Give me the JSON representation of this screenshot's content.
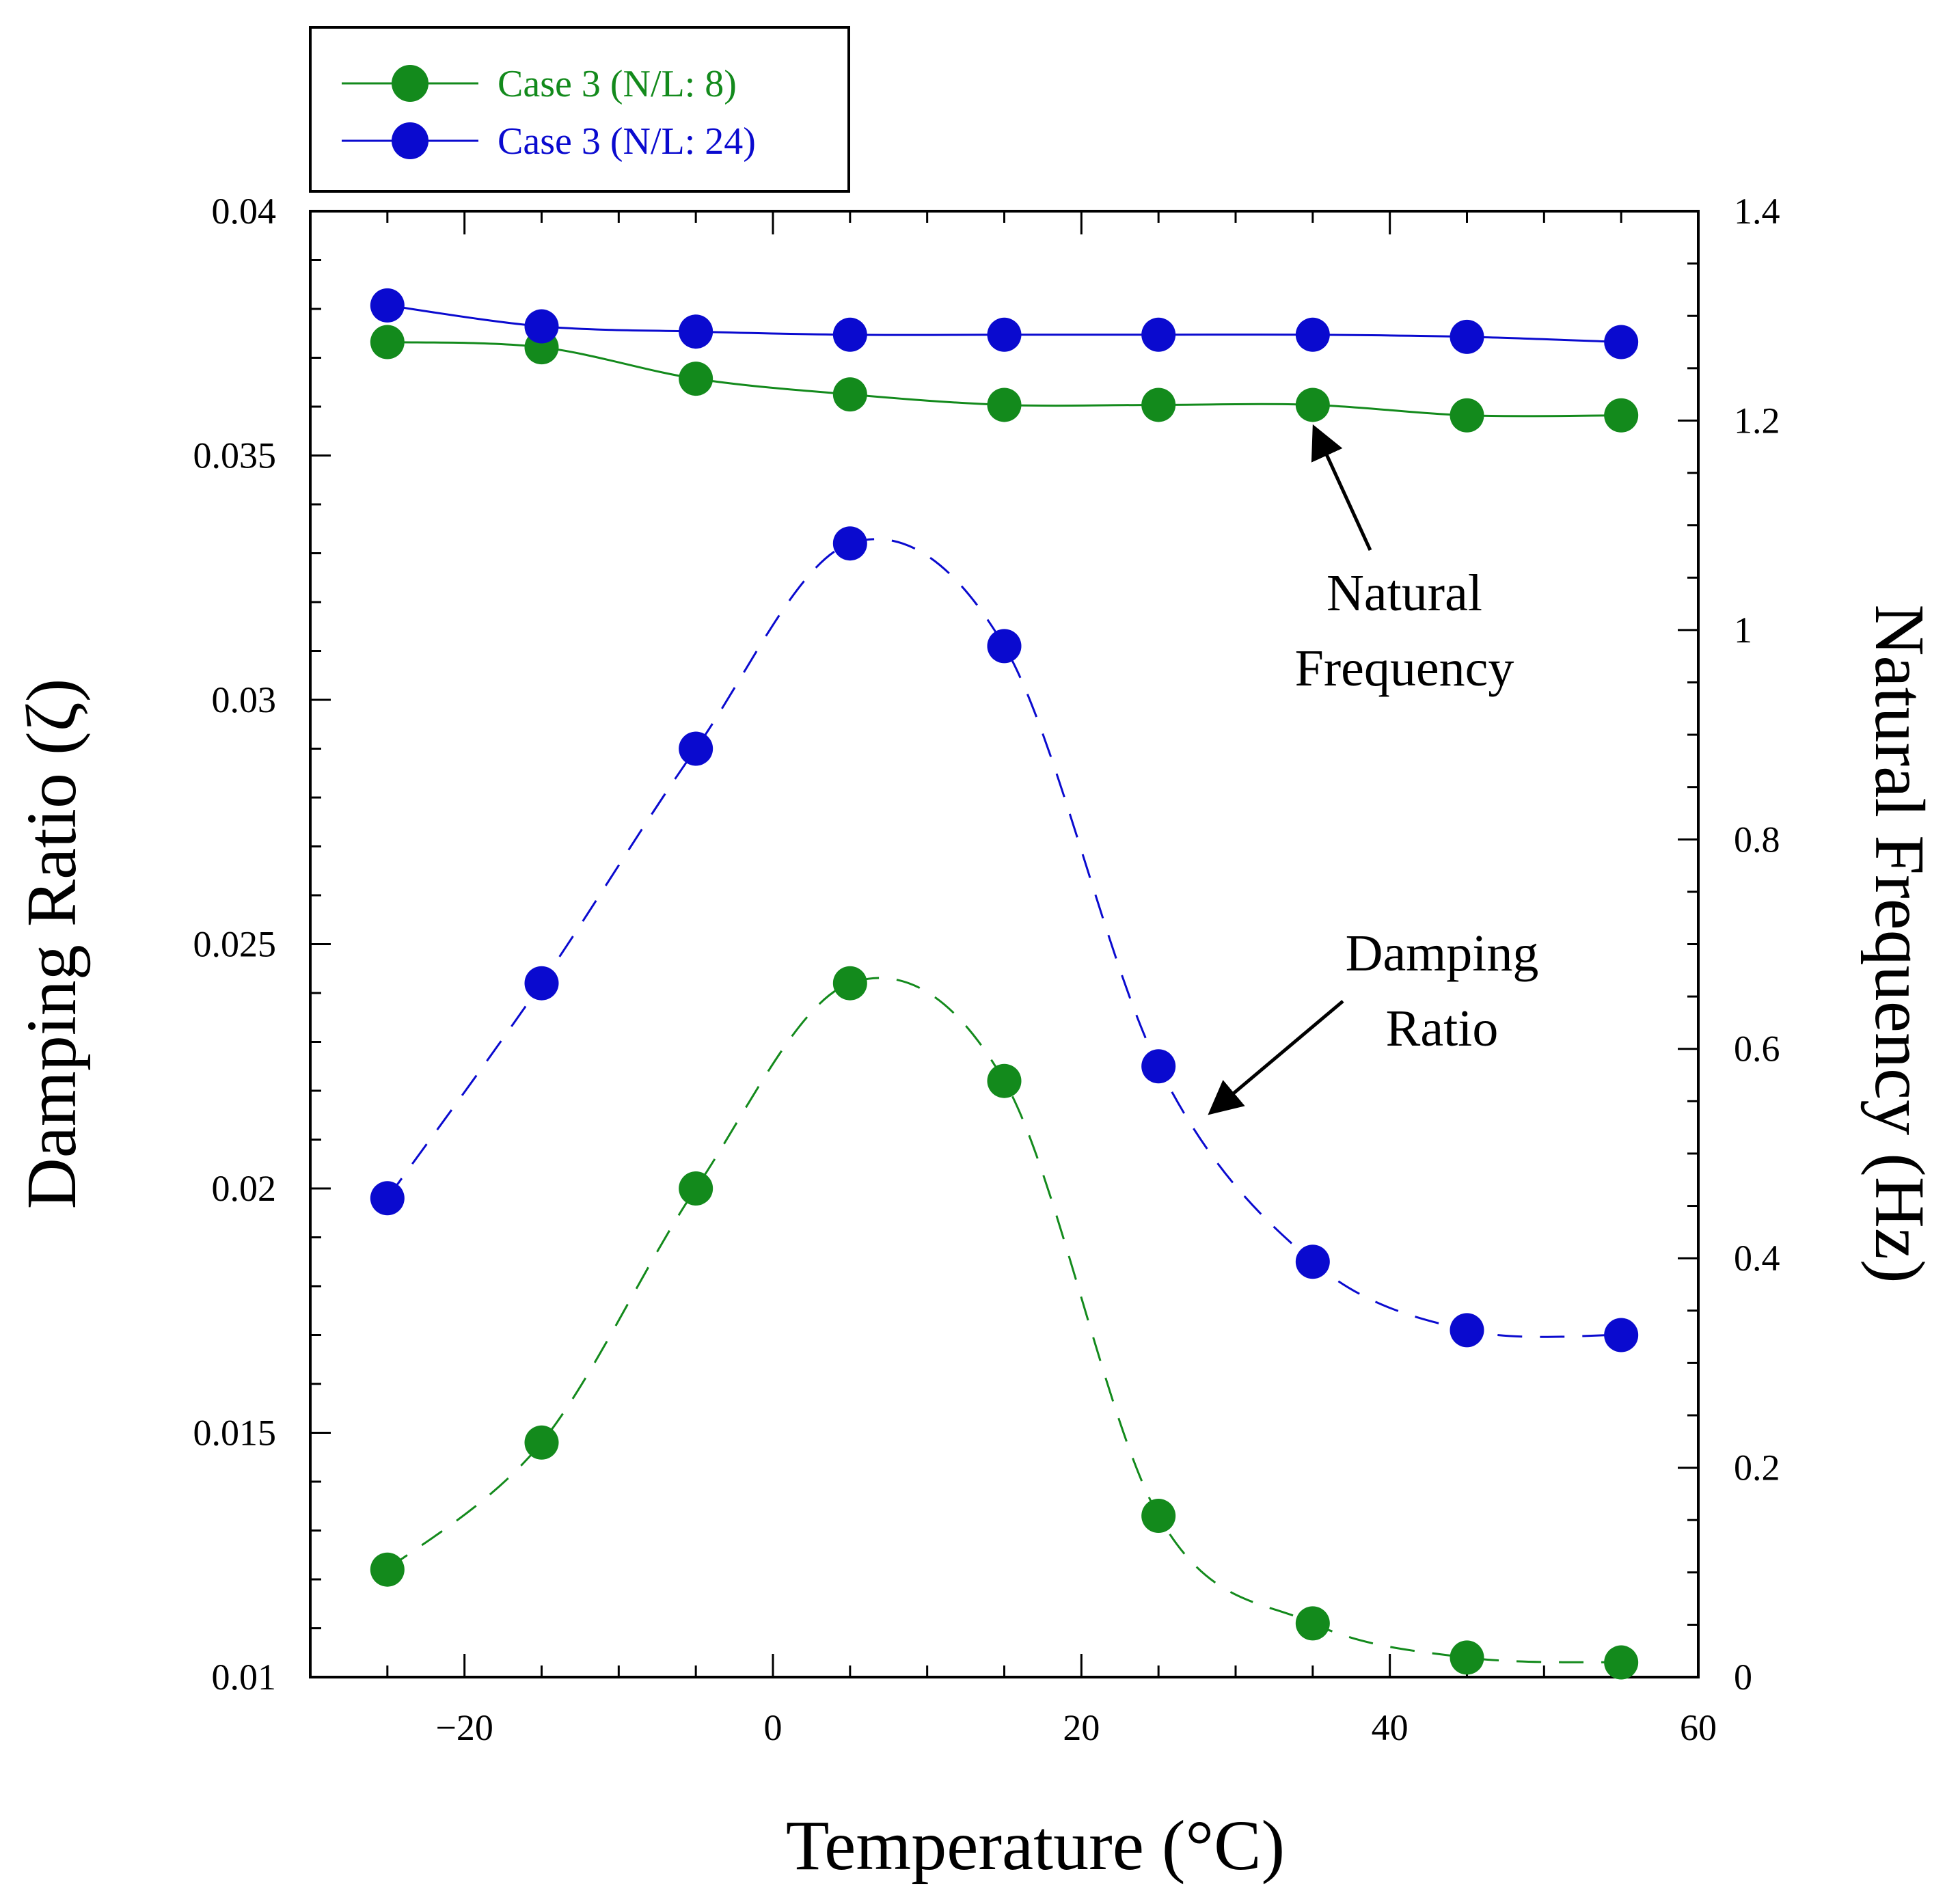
{
  "chart_data": {
    "type": "line",
    "xlabel": "Temperature (°C)",
    "ylabel": "Damping Ratio (ζ)",
    "y2label": "Natural Frequency (Hz)",
    "xlim": [
      -30,
      60
    ],
    "ylim": [
      0.01,
      0.04
    ],
    "y2lim": [
      0,
      1.4
    ],
    "x_ticks": [
      -20,
      0,
      20,
      40,
      60
    ],
    "x_tick_labels": [
      "−20",
      "0",
      "20",
      "40",
      "60"
    ],
    "y_ticks": [
      0.01,
      0.015,
      0.02,
      0.025,
      0.03,
      0.035,
      0.04
    ],
    "y_tick_labels": [
      "0.01",
      "0.015",
      "0.02",
      "0.025",
      "0.03",
      "0.035",
      "0.04"
    ],
    "y2_ticks": [
      0,
      0.2,
      0.4,
      0.6,
      0.8,
      1,
      1.2,
      1.4
    ],
    "y2_tick_labels": [
      "0",
      "0.2",
      "0.4",
      "0.6",
      "0.8",
      "1",
      "1.2",
      "1.4"
    ],
    "grid": false,
    "legend_position": "top-left, outside plot",
    "x": [
      -25,
      -15,
      -5,
      5,
      15,
      25,
      35,
      45,
      55
    ],
    "series": [
      {
        "name": "Case 3 (N/L: 8)",
        "quantity": "Natural Frequency",
        "axis": "right",
        "style": "solid",
        "color": "#138a1c",
        "values": [
          1.275,
          1.27,
          1.24,
          1.225,
          1.215,
          1.215,
          1.215,
          1.205,
          1.205
        ]
      },
      {
        "name": "Case 3 (N/L: 24)",
        "quantity": "Natural Frequency",
        "axis": "right",
        "style": "solid",
        "color": "#0a0acf",
        "values": [
          1.31,
          1.29,
          1.285,
          1.282,
          1.282,
          1.282,
          1.282,
          1.28,
          1.275
        ]
      },
      {
        "name": "Case 3 (N/L: 8)",
        "quantity": "Damping Ratio",
        "axis": "left",
        "style": "dashed",
        "color": "#138a1c",
        "values": [
          0.0122,
          0.0148,
          0.02,
          0.0242,
          0.0222,
          0.0133,
          0.0111,
          0.0104,
          0.0103
        ]
      },
      {
        "name": "Case 3 (N/L: 24)",
        "quantity": "Damping Ratio",
        "axis": "left",
        "style": "dashed",
        "color": "#0a0acf",
        "values": [
          0.0198,
          0.0242,
          0.029,
          0.0332,
          0.0311,
          0.0225,
          0.0185,
          0.0171,
          0.017
        ]
      }
    ],
    "annotations": [
      {
        "lines": [
          "Natural",
          "Frequency"
        ]
      },
      {
        "lines": [
          "Damping",
          "Ratio"
        ]
      }
    ],
    "legend": [
      {
        "label": "Case 3 (N/L: 8)",
        "color": "#138a1c"
      },
      {
        "label": "Case 3 (N/L: 24)",
        "color": "#0a0acf"
      }
    ]
  }
}
